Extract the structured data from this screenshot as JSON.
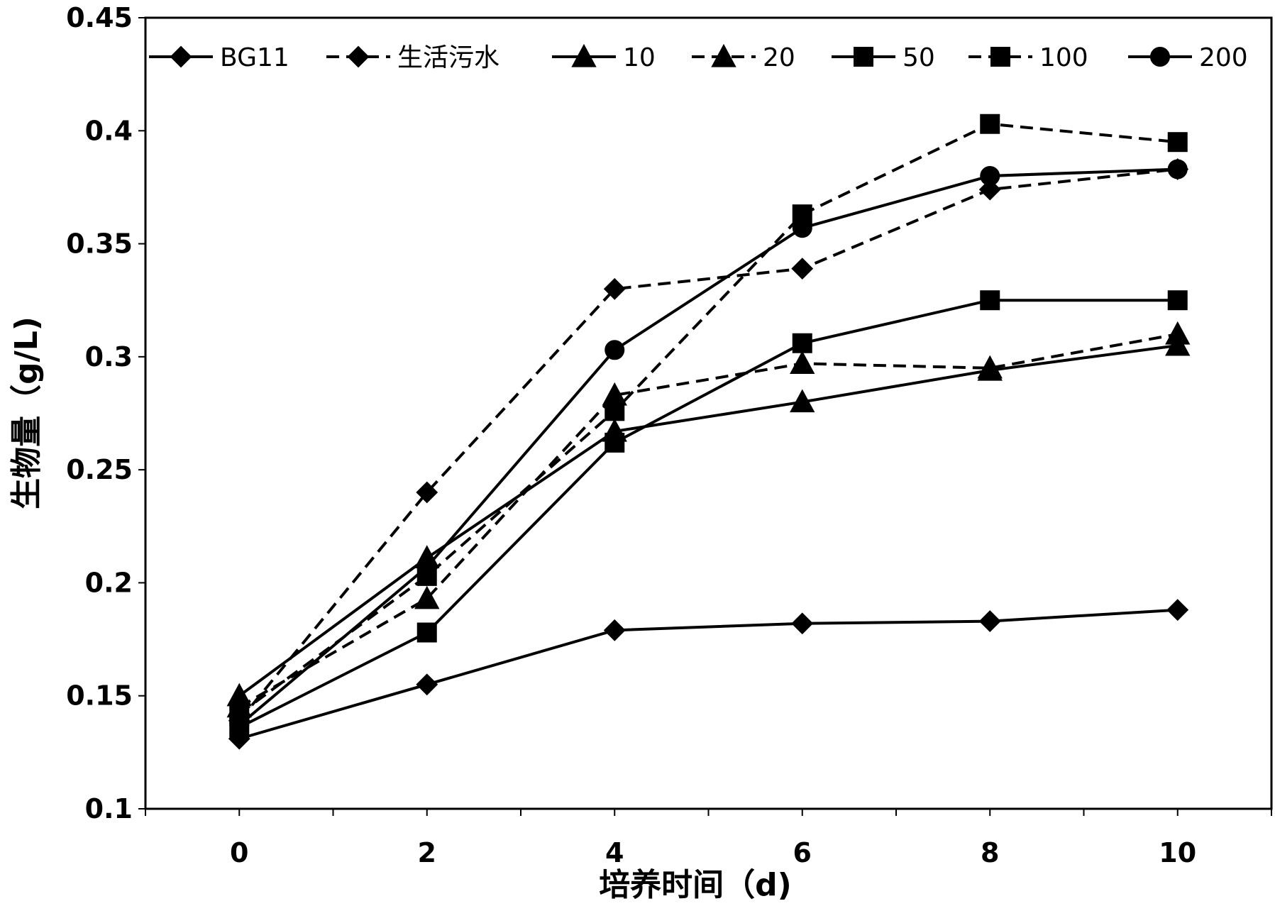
{
  "chart_data": {
    "type": "line",
    "title": "",
    "xlabel": "培养时间（d)",
    "ylabel": "生物量（g/L)",
    "x": [
      0,
      2,
      4,
      6,
      8,
      10
    ],
    "xlim": [
      -1,
      11
    ],
    "ylim": [
      0.1,
      0.45
    ],
    "x_ticks": [
      0,
      2,
      4,
      6,
      8,
      10
    ],
    "y_ticks": [
      0.1,
      0.15,
      0.2,
      0.25,
      0.3,
      0.35,
      0.4,
      0.45
    ],
    "x_tick_labels": [
      "0",
      "2",
      "4",
      "6",
      "8",
      "10"
    ],
    "y_tick_labels": [
      "0.1",
      "0.15",
      "0.2",
      "0.25",
      "0.3",
      "0.35",
      "0.4",
      "0.45"
    ],
    "grid": false,
    "legend_position": "top",
    "series": [
      {
        "name": "BG11",
        "values": [
          0.131,
          0.155,
          0.179,
          0.182,
          0.183,
          0.188
        ],
        "marker": "diamond",
        "dash": "solid",
        "color": "#000000"
      },
      {
        "name": "生活污水",
        "values": [
          0.139,
          0.24,
          0.33,
          0.339,
          0.374,
          0.383
        ],
        "marker": "diamond",
        "dash": "dashed",
        "color": "#000000"
      },
      {
        "name": "10",
        "values": [
          0.15,
          0.211,
          0.267,
          0.28,
          0.294,
          0.305
        ],
        "marker": "triangle",
        "dash": "solid",
        "color": "#000000"
      },
      {
        "name": "20",
        "values": [
          0.145,
          0.193,
          0.283,
          0.297,
          0.295,
          0.31
        ],
        "marker": "triangle",
        "dash": "dashed",
        "color": "#000000"
      },
      {
        "name": "50",
        "values": [
          0.136,
          0.178,
          0.262,
          0.306,
          0.325,
          0.325
        ],
        "marker": "square",
        "dash": "solid",
        "color": "#000000"
      },
      {
        "name": "100",
        "values": [
          0.142,
          0.203,
          0.276,
          0.363,
          0.403,
          0.395
        ],
        "marker": "square",
        "dash": "dashed",
        "color": "#000000"
      },
      {
        "name": "200",
        "values": [
          0.137,
          0.207,
          0.303,
          0.357,
          0.38,
          0.383
        ],
        "marker": "circle",
        "dash": "solid",
        "color": "#000000"
      }
    ]
  }
}
